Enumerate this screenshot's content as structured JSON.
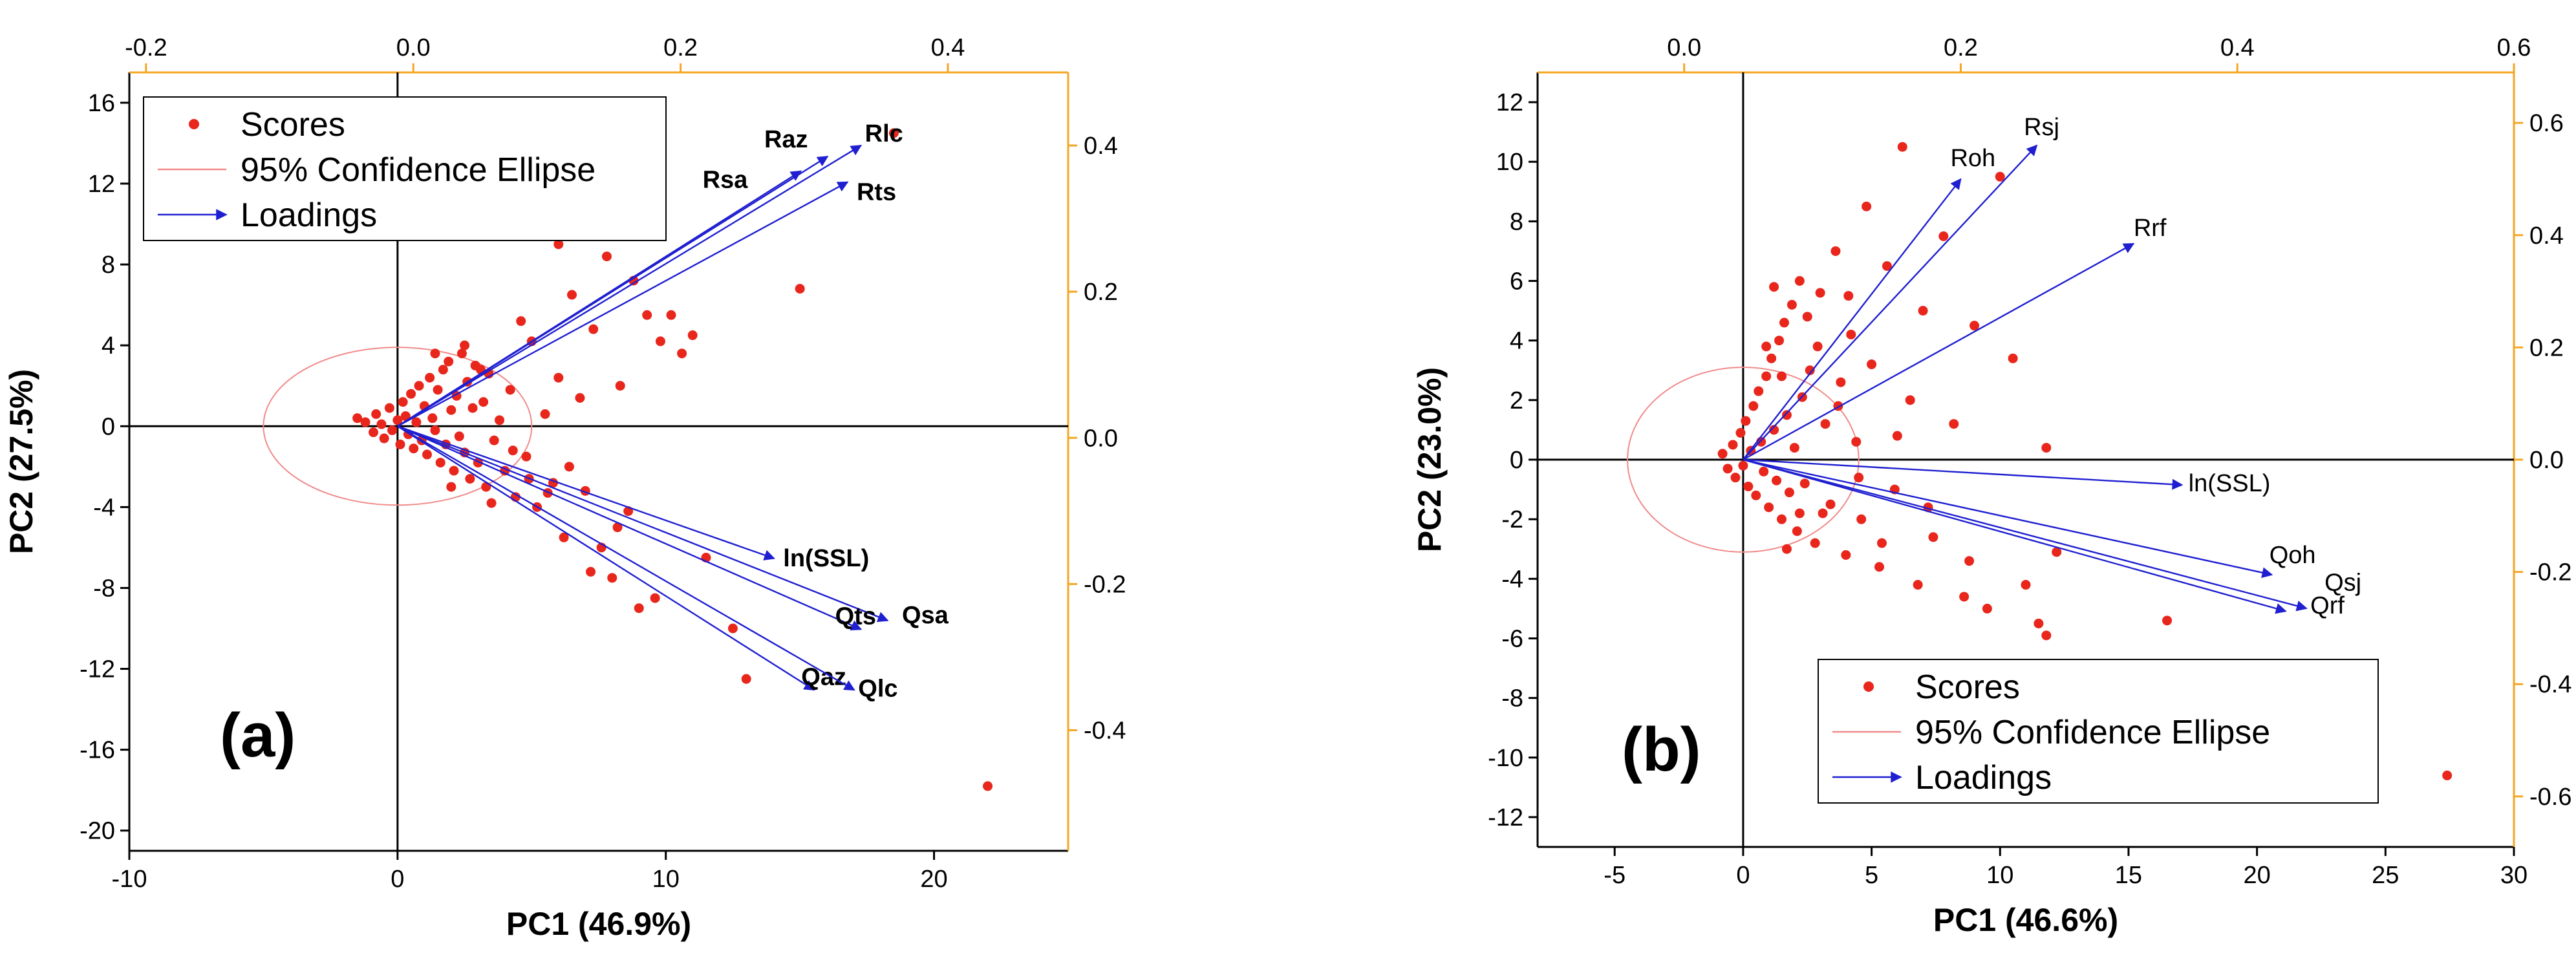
{
  "chart_data": [
    {
      "type": "scatter",
      "panel_label": "(a)",
      "xlabel": "PC1 (46.9%)",
      "ylabel": "PC2 (27.5%)",
      "xlim": [
        -10,
        25
      ],
      "ylim": [
        -21,
        17.5
      ],
      "xticks": [
        -10,
        0,
        10,
        20
      ],
      "yticks": [
        16,
        12,
        8,
        4,
        0,
        -4,
        -8,
        -12,
        -16,
        -20
      ],
      "top_xlim": [
        -0.2125,
        0.49
      ],
      "top_xticks": [
        "-0.2",
        "0.0",
        "0.2",
        "0.4"
      ],
      "right_ylim": [
        -0.565,
        0.5
      ],
      "right_yticks": [
        "0.4",
        "0.2",
        "0.0",
        "-0.2",
        "-0.4"
      ],
      "legend": {
        "position": "top-left",
        "entries": [
          "Scores",
          "95% Confidence Ellipse",
          "Loadings"
        ]
      },
      "ellipse": {
        "cx": 0,
        "cy": 0,
        "rx": 5,
        "ry": 3.9
      },
      "loadings": [
        {
          "name": "Rlc",
          "x": 0.335,
          "y": 0.4
        },
        {
          "name": "Raz",
          "x": 0.31,
          "y": 0.385
        },
        {
          "name": "Rsa",
          "x": 0.29,
          "y": 0.365
        },
        {
          "name": "Rts",
          "x": 0.325,
          "y": 0.35
        },
        {
          "name": "ln(SSL)",
          "x": 0.27,
          "y": -0.165
        },
        {
          "name": "Qsa",
          "x": 0.355,
          "y": -0.25
        },
        {
          "name": "Qts",
          "x": 0.335,
          "y": -0.262
        },
        {
          "name": "Qaz",
          "x": 0.3,
          "y": -0.345
        },
        {
          "name": "Qlc",
          "x": 0.33,
          "y": -0.345
        }
      ],
      "scores": [
        [
          -1.5,
          0.4
        ],
        [
          -1.2,
          0.2
        ],
        [
          -0.9,
          -0.3
        ],
        [
          -0.8,
          0.6
        ],
        [
          -0.6,
          0.1
        ],
        [
          -0.5,
          -0.6
        ],
        [
          -0.3,
          0.9
        ],
        [
          -0.2,
          -0.2
        ],
        [
          0,
          0.3
        ],
        [
          0.1,
          -0.9
        ],
        [
          0.2,
          1.2
        ],
        [
          0.3,
          0.5
        ],
        [
          0.4,
          -0.4
        ],
        [
          0.5,
          1.6
        ],
        [
          0.6,
          -1.1
        ],
        [
          0.7,
          0.2
        ],
        [
          0.8,
          2.0
        ],
        [
          0.9,
          -0.7
        ],
        [
          1.0,
          1.0
        ],
        [
          1.1,
          -1.4
        ],
        [
          1.2,
          2.4
        ],
        [
          1.3,
          0.4
        ],
        [
          1.4,
          -0.2
        ],
        [
          1.5,
          1.8
        ],
        [
          1.6,
          -1.8
        ],
        [
          1.7,
          2.8
        ],
        [
          1.8,
          -0.9
        ],
        [
          1.9,
          3.2
        ],
        [
          2.0,
          0.8
        ],
        [
          2.1,
          -2.2
        ],
        [
          2.2,
          1.5
        ],
        [
          2.3,
          -0.5
        ],
        [
          2.4,
          3.6
        ],
        [
          2.5,
          -1.3
        ],
        [
          2.6,
          2.2
        ],
        [
          2.7,
          -2.6
        ],
        [
          2.8,
          0.9
        ],
        [
          2.9,
          3.0
        ],
        [
          3.0,
          -1.8
        ],
        [
          3.2,
          1.2
        ],
        [
          3.3,
          -3.0
        ],
        [
          3.4,
          2.6
        ],
        [
          3.6,
          -0.7
        ],
        [
          3.8,
          0.3
        ],
        [
          4.0,
          -2.2
        ],
        [
          4.2,
          1.8
        ],
        [
          4.4,
          -3.5
        ],
        [
          4.6,
          5.2
        ],
        [
          4.8,
          -1.5
        ],
        [
          5.0,
          4.2
        ],
        [
          5.2,
          -4.0
        ],
        [
          5.5,
          0.6
        ],
        [
          5.8,
          -2.8
        ],
        [
          6.0,
          2.4
        ],
        [
          6.2,
          -5.5
        ],
        [
          6.5,
          6.5
        ],
        [
          6.8,
          1.4
        ],
        [
          7.0,
          -3.2
        ],
        [
          7.3,
          4.8
        ],
        [
          7.6,
          -6.0
        ],
        [
          7.8,
          8.4
        ],
        [
          8.0,
          -7.5
        ],
        [
          8.3,
          2.0
        ],
        [
          8.6,
          -4.2
        ],
        [
          8.8,
          7.2
        ],
        [
          9.0,
          -9.0
        ],
        [
          9.3,
          5.5
        ],
        [
          9.6,
          -8.5
        ],
        [
          9.8,
          4.2
        ],
        [
          10.2,
          5.5
        ],
        [
          10.6,
          3.6
        ],
        [
          11.0,
          4.5
        ],
        [
          11.5,
          -6.5
        ],
        [
          12.5,
          -10.0
        ],
        [
          13.0,
          -12.5
        ],
        [
          15.0,
          6.8
        ],
        [
          18.5,
          14.5
        ],
        [
          22.0,
          -17.8
        ],
        [
          6.0,
          9.0
        ],
        [
          7.2,
          -7.2
        ],
        [
          3.5,
          -3.8
        ],
        [
          4.3,
          -1.2
        ],
        [
          2.5,
          4.0
        ],
        [
          5.6,
          -3.3
        ],
        [
          6.4,
          -2.0
        ],
        [
          8.2,
          -5.0
        ],
        [
          3.1,
          2.8
        ],
        [
          1.4,
          3.6
        ],
        [
          4.9,
          -2.6
        ],
        [
          2.0,
          -3.0
        ]
      ]
    },
    {
      "type": "scatter",
      "panel_label": "(b)",
      "xlabel": "PC1 (46.6%)",
      "ylabel": "PC2 (23.0%)",
      "xlim": [
        -8,
        30
      ],
      "ylim": [
        -13,
        13
      ],
      "xticks": [
        -5,
        0,
        5,
        10,
        15,
        20,
        25,
        30
      ],
      "yticks": [
        12,
        10,
        8,
        6,
        4,
        2,
        0,
        -2,
        -4,
        -6,
        -8,
        -10,
        -12
      ],
      "top_xlim": [
        -0.106,
        0.6
      ],
      "top_xticks": [
        "0.0",
        "0.2",
        "0.4",
        "0.6"
      ],
      "right_ylim": [
        -0.69,
        0.69
      ],
      "right_yticks": [
        "0.6",
        "0.4",
        "0.2",
        "0.0",
        "-0.2",
        "-0.4",
        "-0.6"
      ],
      "legend": {
        "position": "bottom-right",
        "entries": [
          "Scores",
          "95% Confidence Ellipse",
          "Loadings"
        ]
      },
      "ellipse": {
        "cx": 0,
        "cy": 0,
        "rx": 4.5,
        "ry": 3.1
      },
      "loadings": [
        {
          "name": "Rsj",
          "x": 0.255,
          "y": 0.56
        },
        {
          "name": "Roh",
          "x": 0.2,
          "y": 0.5
        },
        {
          "name": "Rrf",
          "x": 0.325,
          "y": 0.385
        },
        {
          "name": "ln(SSL)",
          "x": 0.36,
          "y": -0.045
        },
        {
          "name": "Qoh",
          "x": 0.425,
          "y": -0.205
        },
        {
          "name": "Qsj",
          "x": 0.435,
          "y": -0.27
        },
        {
          "name": "Qrf",
          "x": 0.45,
          "y": -0.265
        }
      ],
      "scores": [
        [
          -0.8,
          0.2
        ],
        [
          -0.6,
          -0.3
        ],
        [
          -0.4,
          0.5
        ],
        [
          -0.3,
          -0.6
        ],
        [
          -0.1,
          0.9
        ],
        [
          0,
          -0.2
        ],
        [
          0.1,
          1.3
        ],
        [
          0.2,
          -0.9
        ],
        [
          0.3,
          0.3
        ],
        [
          0.4,
          1.8
        ],
        [
          0.5,
          -1.2
        ],
        [
          0.6,
          2.3
        ],
        [
          0.7,
          0.6
        ],
        [
          0.8,
          -0.4
        ],
        [
          0.9,
          2.8
        ],
        [
          1.0,
          -1.6
        ],
        [
          1.1,
          3.4
        ],
        [
          1.2,
          1.0
        ],
        [
          1.3,
          -0.7
        ],
        [
          1.4,
          4.0
        ],
        [
          1.5,
          -2.0
        ],
        [
          1.6,
          4.6
        ],
        [
          1.7,
          1.5
        ],
        [
          1.8,
          -1.1
        ],
        [
          1.9,
          5.2
        ],
        [
          2.0,
          0.4
        ],
        [
          2.1,
          -2.4
        ],
        [
          2.2,
          6.0
        ],
        [
          2.3,
          2.1
        ],
        [
          2.4,
          -0.8
        ],
        [
          2.6,
          3.0
        ],
        [
          2.8,
          -2.8
        ],
        [
          3.0,
          5.6
        ],
        [
          3.2,
          1.2
        ],
        [
          3.4,
          -1.5
        ],
        [
          3.6,
          7.0
        ],
        [
          3.8,
          2.6
        ],
        [
          4.0,
          -3.2
        ],
        [
          4.2,
          4.2
        ],
        [
          4.4,
          0.6
        ],
        [
          4.6,
          -2.0
        ],
        [
          4.8,
          8.5
        ],
        [
          5.0,
          3.2
        ],
        [
          5.3,
          -3.6
        ],
        [
          5.6,
          6.5
        ],
        [
          5.9,
          -1.0
        ],
        [
          6.2,
          10.5
        ],
        [
          6.5,
          2.0
        ],
        [
          6.8,
          -4.2
        ],
        [
          7.0,
          5.0
        ],
        [
          7.4,
          -2.6
        ],
        [
          7.8,
          7.5
        ],
        [
          8.2,
          1.2
        ],
        [
          8.6,
          -4.6
        ],
        [
          9.0,
          4.5
        ],
        [
          9.5,
          -5.0
        ],
        [
          10.0,
          9.5
        ],
        [
          10.5,
          3.4
        ],
        [
          11.0,
          -4.2
        ],
        [
          11.8,
          -5.9
        ],
        [
          11.5,
          -5.5
        ],
        [
          11.8,
          0.4
        ],
        [
          12.2,
          -3.1
        ],
        [
          16.5,
          -5.4
        ],
        [
          27.4,
          -10.6
        ],
        [
          3.1,
          -1.8
        ],
        [
          1.5,
          2.8
        ],
        [
          2.5,
          4.8
        ],
        [
          4.5,
          -0.6
        ],
        [
          6.0,
          0.8
        ],
        [
          0.9,
          3.8
        ],
        [
          1.7,
          -3.0
        ],
        [
          3.7,
          1.8
        ],
        [
          5.4,
          -2.8
        ],
        [
          7.2,
          -1.6
        ],
        [
          8.8,
          -3.4
        ],
        [
          2.9,
          3.8
        ],
        [
          4.1,
          5.5
        ],
        [
          1.2,
          5.8
        ],
        [
          2.2,
          -1.8
        ]
      ]
    }
  ]
}
